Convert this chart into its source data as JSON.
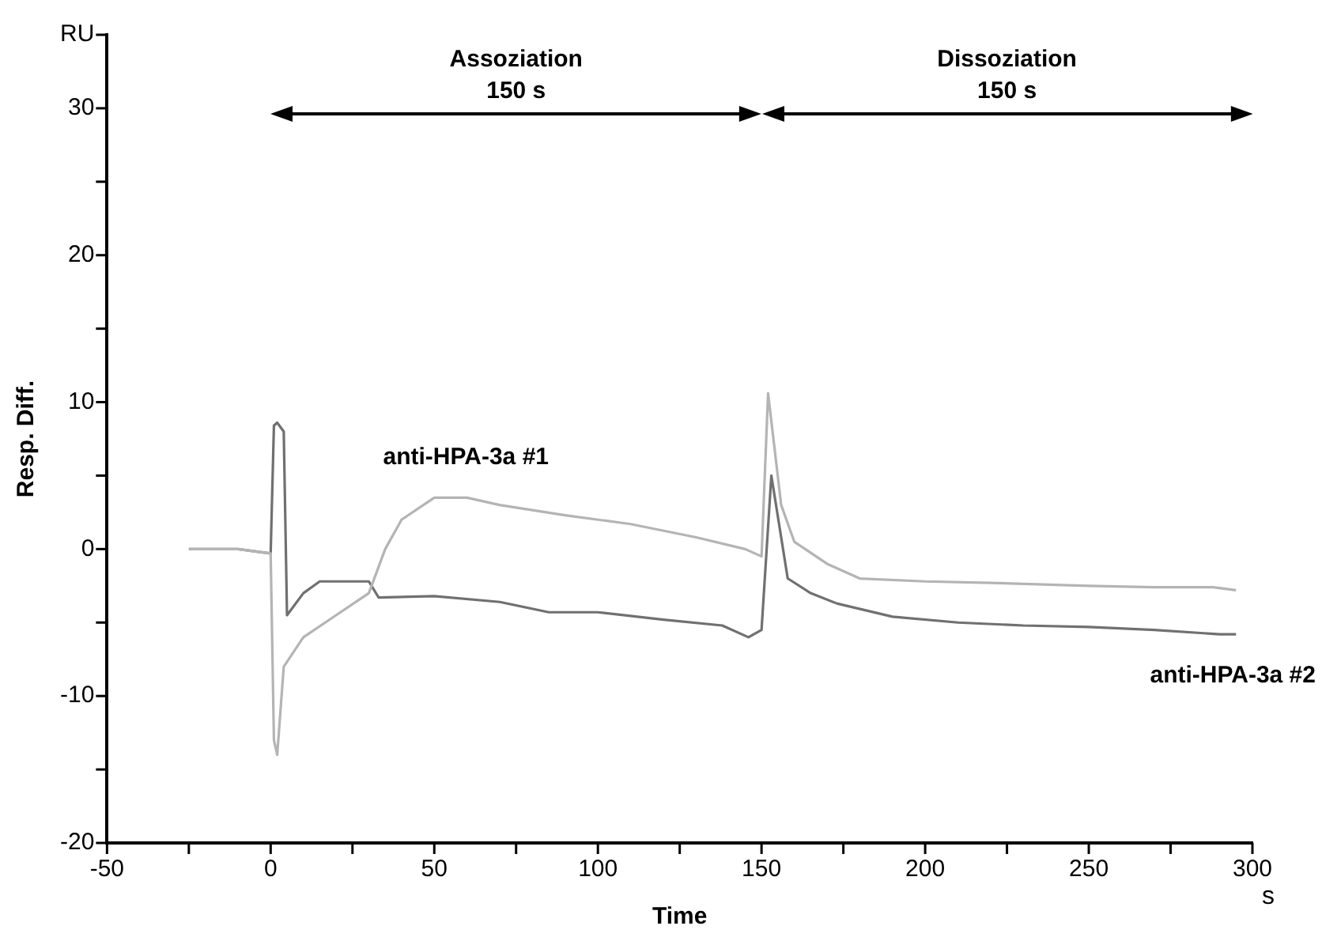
{
  "chart_data": {
    "type": "line",
    "xlabel": "Time",
    "ylabel": "Resp. Diff.",
    "annotations": [
      "s",
      "Assoziation 150 s",
      "Dissoziation 150 s"
    ],
    "xlim": [
      -50,
      300
    ],
    "xticks": [
      -50,
      {
        "value": -25,
        "label": null
      },
      0,
      {
        "value": 25,
        "label": null
      },
      50,
      {
        "value": 75,
        "label": null
      },
      100,
      {
        "value": 125,
        "label": null
      },
      150,
      {
        "value": 175,
        "label": null
      },
      200,
      {
        "value": 225,
        "label": null
      },
      250,
      {
        "value": 275,
        "label": null
      },
      300
    ],
    "ylim": [
      -20,
      35
    ],
    "yticks": [
      -20,
      {
        "value": -15,
        "label": null
      },
      -10,
      {
        "value": -5,
        "label": null
      },
      0,
      {
        "value": 5,
        "label": null
      },
      10,
      {
        "value": 15,
        "label": null
      },
      20,
      {
        "value": 25,
        "label": null
      },
      30,
      {
        "value": 35,
        "label": "RU"
      }
    ],
    "grid": false,
    "legend": false,
    "marker": "none",
    "line_style": "solid",
    "series": [
      {
        "name": "anti-HPA-3a #1",
        "color": "#b4b4b4",
        "x": [
          -25,
          -10,
          0,
          1,
          2,
          4,
          10,
          20,
          30,
          35,
          40,
          50,
          60,
          70,
          90,
          110,
          130,
          145,
          150,
          152,
          156,
          160,
          170,
          180,
          200,
          220,
          250,
          270,
          288,
          295
        ],
        "values": [
          0,
          0,
          -0.3,
          -13,
          -14,
          -8,
          -6,
          -4.5,
          -3,
          0,
          2,
          3.5,
          3.5,
          3,
          2.3,
          1.7,
          0.8,
          0,
          -0.5,
          10.6,
          3,
          0.5,
          -1,
          -2,
          -2.2,
          -2.3,
          -2.5,
          -2.6,
          -2.6,
          -2.8
        ]
      },
      {
        "name": "anti-HPA-3a #2",
        "color": "#707070",
        "x": [
          -25,
          -10,
          0,
          1,
          2,
          4,
          5,
          10,
          15,
          30,
          33,
          50,
          70,
          85,
          100,
          120,
          138,
          146,
          150,
          153,
          158,
          165,
          173,
          190,
          210,
          230,
          250,
          270,
          290,
          295
        ],
        "values": [
          0,
          0,
          -0.3,
          8.4,
          8.6,
          8,
          -4.5,
          -3,
          -2.2,
          -2.2,
          -3.3,
          -3.2,
          -3.6,
          -4.3,
          -4.3,
          -4.8,
          -5.2,
          -6,
          -5.5,
          5,
          -2,
          -3,
          -3.7,
          -4.6,
          -5,
          -5.2,
          -5.3,
          -5.5,
          -5.8,
          -5.8
        ]
      }
    ]
  }
}
